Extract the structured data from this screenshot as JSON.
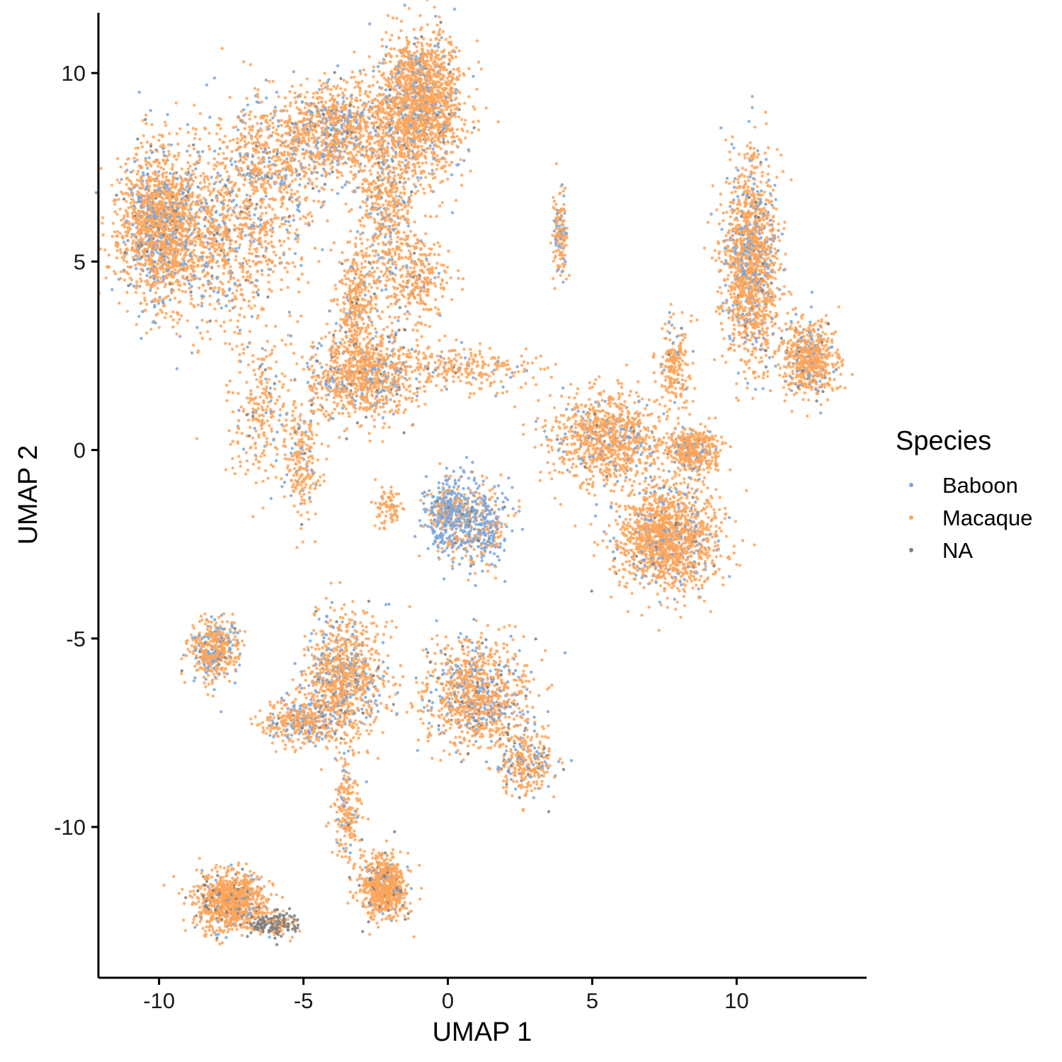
{
  "chart_data": {
    "type": "scatter",
    "title": "",
    "xlabel": "UMAP 1",
    "ylabel": "UMAP 2",
    "xlim": [
      -12.1,
      14.5
    ],
    "ylim": [
      -14.0,
      11.6
    ],
    "x_ticks": [
      {
        "value": -10,
        "label": "-10"
      },
      {
        "value": -5,
        "label": "-5"
      },
      {
        "value": 0,
        "label": "0"
      },
      {
        "value": 5,
        "label": "5"
      },
      {
        "value": 10,
        "label": "10"
      }
    ],
    "y_ticks": [
      {
        "value": 10,
        "label": "10"
      },
      {
        "value": 5,
        "label": "5"
      },
      {
        "value": 0,
        "label": "0"
      },
      {
        "value": -5,
        "label": "-5"
      },
      {
        "value": -10,
        "label": "-10"
      }
    ],
    "grid": false,
    "legend": {
      "title": "Species",
      "placement": "right",
      "entries": [
        {
          "name": "Baboon",
          "color": "#7aa6da"
        },
        {
          "name": "Macaque",
          "color": "#fda45a"
        },
        {
          "name": "NA",
          "color": "#7f7f7f"
        }
      ]
    },
    "clusters": [
      {
        "name": "top-left blob",
        "center": [
          -10.0,
          6.0
        ],
        "spread": [
          0.7,
          1.0
        ],
        "n": 1500,
        "mix": [
          0.2,
          0.76,
          0.04
        ]
      },
      {
        "name": "top-left arc",
        "center": [
          -7.8,
          5.5
        ],
        "spread": [
          1.3,
          1.1
        ],
        "n": 900,
        "mix": [
          0.2,
          0.76,
          0.04
        ]
      },
      {
        "name": "top-left bridge",
        "center": [
          -6.0,
          7.6
        ],
        "spread": [
          1.2,
          0.9
        ],
        "n": 700,
        "mix": [
          0.2,
          0.77,
          0.03
        ]
      },
      {
        "name": "upper arm",
        "center": [
          -3.8,
          8.6
        ],
        "spread": [
          1.0,
          0.6
        ],
        "n": 800,
        "mix": [
          0.22,
          0.74,
          0.04
        ]
      },
      {
        "name": "top peak",
        "center": [
          -0.9,
          9.2
        ],
        "spread": [
          0.7,
          0.9
        ],
        "n": 1600,
        "mix": [
          0.13,
          0.85,
          0.02
        ]
      },
      {
        "name": "upper stem",
        "center": [
          -2.1,
          6.5
        ],
        "spread": [
          0.5,
          1.3
        ],
        "n": 600,
        "mix": [
          0.15,
          0.82,
          0.03
        ]
      },
      {
        "name": "stem connector",
        "center": [
          -1.0,
          4.5
        ],
        "spread": [
          0.5,
          0.6
        ],
        "n": 250,
        "mix": [
          0.1,
          0.88,
          0.02
        ]
      },
      {
        "name": "mid-left cluster",
        "center": [
          -3.0,
          2.0
        ],
        "spread": [
          0.9,
          0.6
        ],
        "n": 900,
        "mix": [
          0.16,
          0.8,
          0.04
        ]
      },
      {
        "name": "mid-left arm",
        "center": [
          -3.2,
          3.9
        ],
        "spread": [
          0.3,
          0.7
        ],
        "n": 300,
        "mix": [
          0.1,
          0.88,
          0.02
        ]
      },
      {
        "name": "diagonal strand",
        "center": [
          -6.5,
          1.0
        ],
        "spread": [
          0.6,
          0.9
        ],
        "n": 250,
        "mix": [
          0.1,
          0.88,
          0.02
        ]
      },
      {
        "name": "small strand",
        "center": [
          -5.0,
          -0.2
        ],
        "spread": [
          0.3,
          0.8
        ],
        "n": 220,
        "mix": [
          0.08,
          0.9,
          0.02
        ]
      },
      {
        "name": "tiny cluster",
        "center": [
          -2.1,
          -1.5
        ],
        "spread": [
          0.25,
          0.25
        ],
        "n": 80,
        "mix": [
          0.05,
          0.95,
          0.0
        ]
      },
      {
        "name": "blue central cluster",
        "center": [
          0.0,
          -1.7
        ],
        "spread": [
          0.4,
          0.5
        ],
        "n": 450,
        "mix": [
          0.72,
          0.26,
          0.02
        ]
      },
      {
        "name": "blue central cluster 2",
        "center": [
          1.2,
          -2.0
        ],
        "spread": [
          0.5,
          0.6
        ],
        "n": 350,
        "mix": [
          0.62,
          0.36,
          0.02
        ]
      },
      {
        "name": "connector strand",
        "center": [
          0.5,
          2.2
        ],
        "spread": [
          1.2,
          0.3
        ],
        "n": 250,
        "mix": [
          0.1,
          0.88,
          0.02
        ]
      },
      {
        "name": "small vertical",
        "center": [
          3.9,
          5.7
        ],
        "spread": [
          0.12,
          0.6
        ],
        "n": 150,
        "mix": [
          0.3,
          0.68,
          0.02
        ]
      },
      {
        "name": "right-center mass",
        "center": [
          5.5,
          0.3
        ],
        "spread": [
          1.0,
          0.6
        ],
        "n": 900,
        "mix": [
          0.12,
          0.87,
          0.01
        ]
      },
      {
        "name": "right-center lower",
        "center": [
          7.6,
          -2.3
        ],
        "spread": [
          0.9,
          0.7
        ],
        "n": 1400,
        "mix": [
          0.12,
          0.86,
          0.02
        ]
      },
      {
        "name": "right-center ring",
        "center": [
          8.5,
          0.0
        ],
        "spread": [
          0.5,
          0.3
        ],
        "n": 400,
        "mix": [
          0.1,
          0.89,
          0.01
        ]
      },
      {
        "name": "right-center strand",
        "center": [
          7.8,
          2.2
        ],
        "spread": [
          0.3,
          0.6
        ],
        "n": 200,
        "mix": [
          0.1,
          0.88,
          0.02
        ]
      },
      {
        "name": "right column",
        "center": [
          10.5,
          5.0
        ],
        "spread": [
          0.5,
          1.3
        ],
        "n": 1400,
        "mix": [
          0.2,
          0.78,
          0.02
        ]
      },
      {
        "name": "right lower bulge",
        "center": [
          12.5,
          2.4
        ],
        "spread": [
          0.5,
          0.5
        ],
        "n": 600,
        "mix": [
          0.15,
          0.83,
          0.02
        ]
      },
      {
        "name": "lower-left small",
        "center": [
          -8.1,
          -5.3
        ],
        "spread": [
          0.4,
          0.4
        ],
        "n": 450,
        "mix": [
          0.2,
          0.76,
          0.04
        ]
      },
      {
        "name": "lower blob",
        "center": [
          -3.6,
          -6.0
        ],
        "spread": [
          0.7,
          0.8
        ],
        "n": 900,
        "mix": [
          0.2,
          0.77,
          0.03
        ]
      },
      {
        "name": "lower connector",
        "center": [
          -5.0,
          -7.2
        ],
        "spread": [
          0.7,
          0.3
        ],
        "n": 400,
        "mix": [
          0.18,
          0.78,
          0.04
        ]
      },
      {
        "name": "lower right blob",
        "center": [
          1.0,
          -6.5
        ],
        "spread": [
          0.9,
          0.7
        ],
        "n": 1000,
        "mix": [
          0.2,
          0.75,
          0.05
        ]
      },
      {
        "name": "lower right arm",
        "center": [
          2.7,
          -8.3
        ],
        "spread": [
          0.5,
          0.4
        ],
        "n": 300,
        "mix": [
          0.15,
          0.75,
          0.1
        ]
      },
      {
        "name": "bottom-left blob",
        "center": [
          -7.5,
          -12.0
        ],
        "spread": [
          0.6,
          0.4
        ],
        "n": 900,
        "mix": [
          0.05,
          0.85,
          0.1
        ]
      },
      {
        "name": "bottom-left grey edge",
        "center": [
          -6.0,
          -12.6
        ],
        "spread": [
          0.4,
          0.15
        ],
        "n": 200,
        "mix": [
          0.02,
          0.2,
          0.78
        ]
      },
      {
        "name": "bottom-right blob",
        "center": [
          -2.2,
          -11.6
        ],
        "spread": [
          0.4,
          0.4
        ],
        "n": 700,
        "mix": [
          0.06,
          0.88,
          0.06
        ]
      },
      {
        "name": "bottom strand",
        "center": [
          -3.5,
          -9.6
        ],
        "spread": [
          0.25,
          0.7
        ],
        "n": 200,
        "mix": [
          0.1,
          0.88,
          0.02
        ]
      }
    ]
  }
}
